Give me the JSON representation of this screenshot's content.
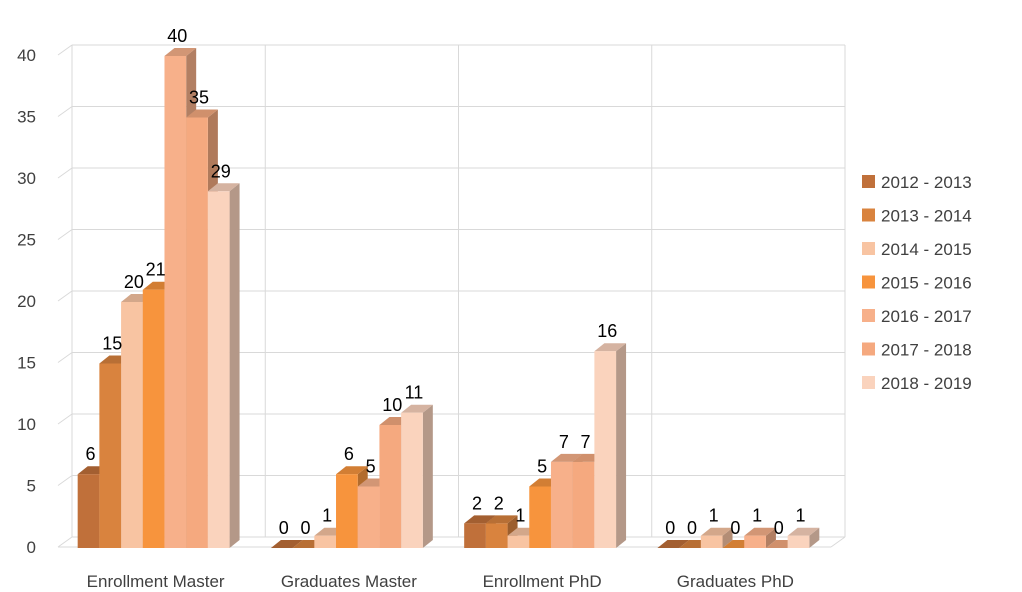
{
  "chart_data": {
    "type": "bar",
    "title": "",
    "xlabel": "",
    "ylabel": "",
    "ylim": [
      0,
      40
    ],
    "yticks": [
      0,
      5,
      10,
      15,
      20,
      25,
      30,
      35,
      40
    ],
    "grid": true,
    "legend_position": "right",
    "categories": [
      "Enrollment Master",
      "Graduates Master",
      "Enrollment PhD",
      "Graduates PhD"
    ],
    "series": [
      {
        "name": "2012 - 2013",
        "color": "#C0703A",
        "values": [
          6,
          0,
          2,
          0
        ]
      },
      {
        "name": "2013 - 2014",
        "color": "#D9833E",
        "values": [
          15,
          0,
          2,
          0
        ]
      },
      {
        "name": "2014 - 2015",
        "color": "#F8C4A2",
        "values": [
          20,
          1,
          1,
          1
        ]
      },
      {
        "name": "2015 - 2016",
        "color": "#F7943D",
        "values": [
          21,
          6,
          5,
          0
        ]
      },
      {
        "name": "2016 - 2017",
        "color": "#F7B08A",
        "values": [
          40,
          5,
          7,
          1
        ]
      },
      {
        "name": "2017 - 2018",
        "color": "#F5A97F",
        "values": [
          35,
          10,
          7,
          0
        ]
      },
      {
        "name": "2018 - 2019",
        "color": "#FAD3BD",
        "values": [
          29,
          11,
          16,
          1
        ]
      }
    ]
  }
}
